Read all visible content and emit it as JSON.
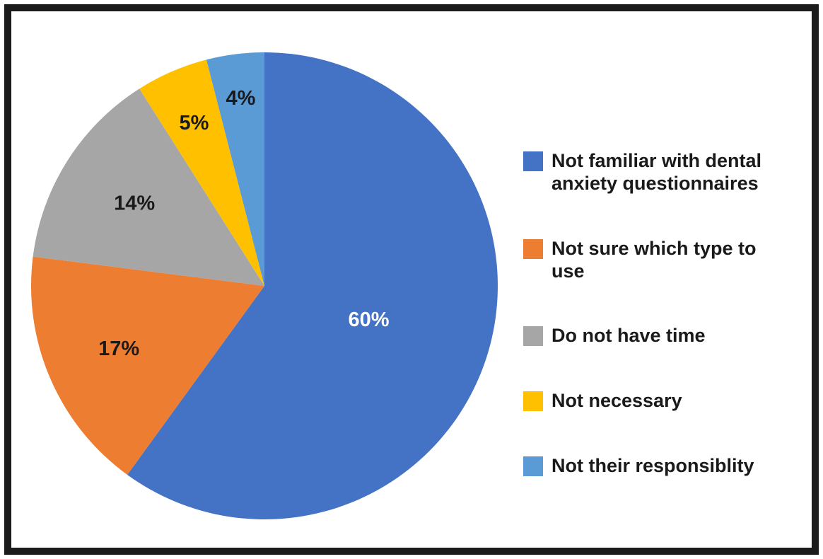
{
  "figure": {
    "background_color": "#ffffff",
    "frame_color": "#1b1b1b"
  },
  "chart_data": {
    "type": "pie",
    "title": "",
    "start_angle_deg": 0,
    "direction": "clockwise",
    "legend_position": "right",
    "data_labels": "percent",
    "slices": [
      {
        "label": "Not familiar with dental anxiety questionnaires",
        "value": 60,
        "pct_label": "60%",
        "color": "#4472C4",
        "label_color": "#ffffff",
        "label_frac": 0.47
      },
      {
        "label": "Not sure which type to use",
        "value": 17,
        "pct_label": "17%",
        "color": "#ED7D31",
        "label_color": "#1a1a1a",
        "label_frac": 0.68
      },
      {
        "label": "Do not have time",
        "value": 14,
        "pct_label": "14%",
        "color": "#A6A6A6",
        "label_color": "#1a1a1a",
        "label_frac": 0.66
      },
      {
        "label": "Not necessary",
        "value": 5,
        "pct_label": "5%",
        "color": "#FFC000",
        "label_color": "#1a1a1a",
        "label_frac": 0.76
      },
      {
        "label": "Not their responsiblity",
        "value": 4,
        "pct_label": "4%",
        "color": "#5B9BD5",
        "label_color": "#1a1a1a",
        "label_frac": 0.81
      }
    ]
  }
}
